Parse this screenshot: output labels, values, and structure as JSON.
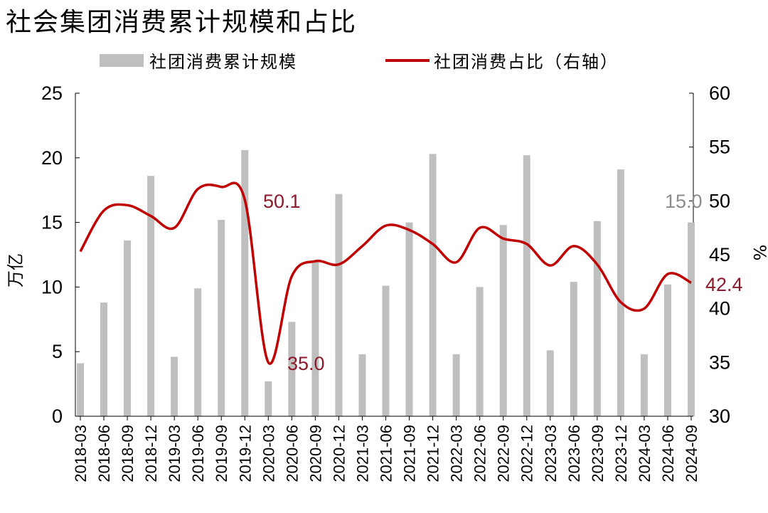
{
  "title": "社会集团消费累计规模和占比",
  "chart_data": {
    "type": "bar+line",
    "categories": [
      "2018-03",
      "2018-06",
      "2018-09",
      "2018-12",
      "2019-03",
      "2019-06",
      "2019-09",
      "2019-12",
      "2020-03",
      "2020-06",
      "2020-09",
      "2020-12",
      "2021-03",
      "2021-06",
      "2021-09",
      "2021-12",
      "2022-03",
      "2022-06",
      "2022-09",
      "2022-12",
      "2023-03",
      "2023-06",
      "2023-09",
      "2023-12",
      "2024-03",
      "2024-06",
      "2024-09"
    ],
    "series": [
      {
        "name": "社团消费累计规模",
        "type": "bar",
        "axis": "left",
        "color": "#bfbfbf",
        "values": [
          4.1,
          8.8,
          13.6,
          18.6,
          4.6,
          9.9,
          15.2,
          20.6,
          2.7,
          7.3,
          12.0,
          17.2,
          4.8,
          10.1,
          15.0,
          20.3,
          4.8,
          10.0,
          14.8,
          20.2,
          5.1,
          10.4,
          15.1,
          19.1,
          4.8,
          10.2,
          15.0
        ]
      },
      {
        "name": "社团消费占比（右轴）",
        "type": "line",
        "axis": "right",
        "color": "#c00000",
        "values": [
          45.3,
          49.1,
          49.6,
          48.6,
          47.5,
          51.1,
          51.3,
          50.1,
          35.0,
          43.0,
          44.4,
          44.1,
          45.8,
          47.7,
          47.3,
          46.0,
          44.3,
          47.5,
          46.5,
          46.0,
          44.0,
          45.8,
          44.1,
          40.6,
          40.0,
          43.2,
          42.4
        ]
      }
    ],
    "ylabel": "万亿",
    "ylabel_right": "%",
    "ylim": [
      0,
      25
    ],
    "yticks": [
      0,
      5,
      10,
      15,
      20,
      25
    ],
    "ylim_right": [
      30,
      60
    ],
    "yticks_right": [
      30,
      35,
      40,
      45,
      50,
      55,
      60
    ],
    "legend_position": "top",
    "grid": false,
    "annotations": [
      {
        "text": "50.1",
        "color": "#8b1a2b"
      },
      {
        "text": "35.0",
        "color": "#8b1a2b"
      },
      {
        "text": "15.0",
        "color": "#8c8c8c"
      },
      {
        "text": "42.4",
        "color": "#8b1a2b"
      }
    ]
  }
}
